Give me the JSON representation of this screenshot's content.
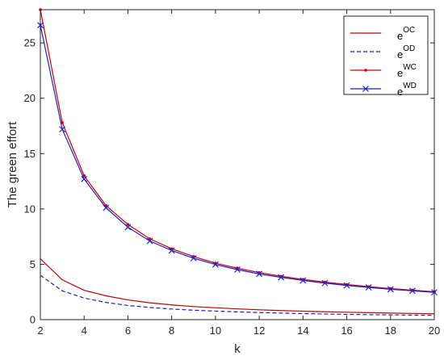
{
  "chart_data": {
    "type": "line",
    "title": "",
    "xlabel": "k",
    "ylabel": "The green effort",
    "xlim": [
      2,
      20
    ],
    "ylim": [
      0,
      28
    ],
    "xticks": [
      "2",
      "4",
      "6",
      "8",
      "10",
      "12",
      "14",
      "16",
      "18",
      "20"
    ],
    "yticks": [
      "0",
      "5",
      "10",
      "15",
      "20",
      "25"
    ],
    "grid": false,
    "legend_position": "top-right",
    "x": [
      2,
      3,
      4,
      5,
      6,
      7,
      8,
      9,
      10,
      11,
      12,
      13,
      14,
      15,
      16,
      17,
      18,
      19,
      20
    ],
    "series": [
      {
        "name": "e",
        "sup": "OC",
        "color": "#c00000",
        "style": "solid",
        "marker": "none",
        "values": [
          5.5,
          3.6,
          2.65,
          2.15,
          1.78,
          1.52,
          1.33,
          1.18,
          1.07,
          0.97,
          0.89,
          0.82,
          0.76,
          0.71,
          0.67,
          0.63,
          0.59,
          0.56,
          0.53
        ]
      },
      {
        "name": "e",
        "sup": "OD",
        "color": "#1f1fbf",
        "style": "dashed",
        "marker": "none",
        "values": [
          4.0,
          2.6,
          1.95,
          1.55,
          1.28,
          1.1,
          0.96,
          0.85,
          0.77,
          0.7,
          0.64,
          0.59,
          0.55,
          0.51,
          0.48,
          0.45,
          0.43,
          0.41,
          0.39
        ]
      },
      {
        "name": "e",
        "sup": "WC",
        "color": "#d40000",
        "style": "solid",
        "marker": "dot",
        "values": [
          28.0,
          17.8,
          13.0,
          10.3,
          8.6,
          7.3,
          6.4,
          5.7,
          5.1,
          4.65,
          4.25,
          3.92,
          3.63,
          3.39,
          3.17,
          2.98,
          2.81,
          2.66,
          2.52
        ]
      },
      {
        "name": "e",
        "sup": "WD",
        "color": "#1f1fcc",
        "style": "solid",
        "marker": "x",
        "values": [
          26.6,
          17.2,
          12.7,
          10.1,
          8.35,
          7.1,
          6.25,
          5.55,
          4.98,
          4.52,
          4.13,
          3.82,
          3.54,
          3.3,
          3.09,
          2.91,
          2.74,
          2.6,
          2.47
        ]
      }
    ]
  }
}
